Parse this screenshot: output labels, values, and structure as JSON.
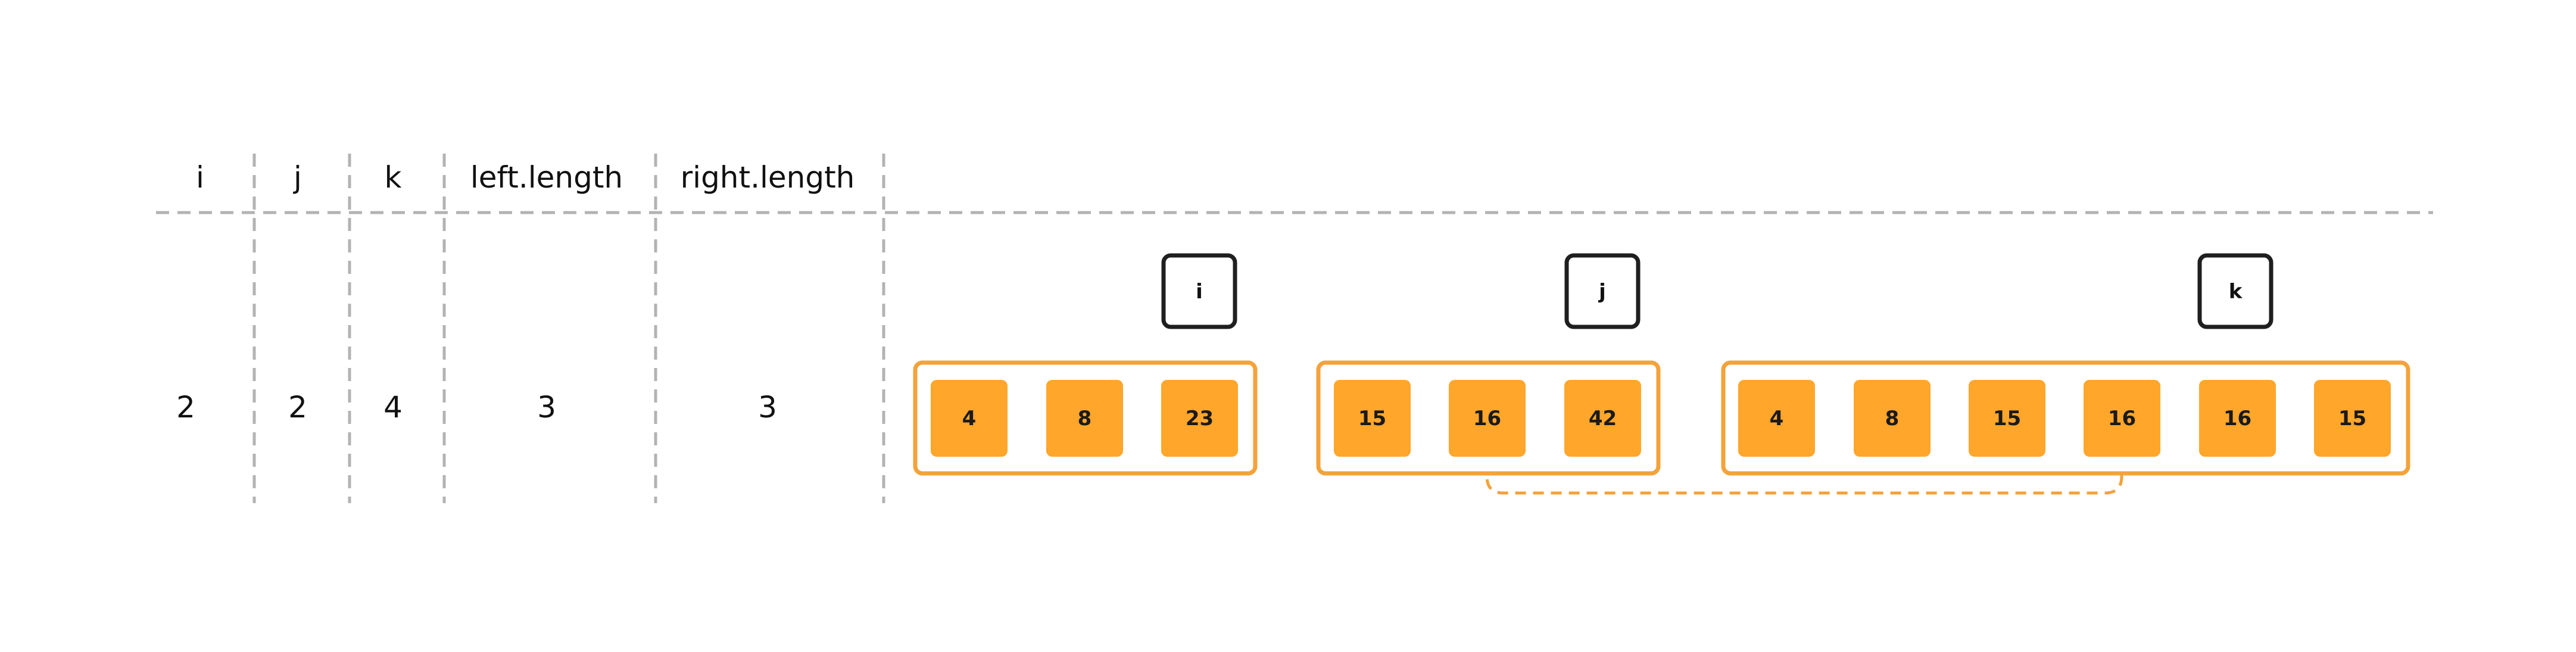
{
  "colors": {
    "accent": "#FFA62B",
    "accent_border": "#F4A23A",
    "grid": "#B3B3B3",
    "text": "#111111",
    "pointer_border": "#1F1F1F"
  },
  "table": {
    "headers": [
      "i",
      "j",
      "k",
      "left.length",
      "right.length"
    ],
    "values": [
      "2",
      "2",
      "4",
      "3",
      "3"
    ]
  },
  "pointers": {
    "i": "i",
    "j": "j",
    "k": "k"
  },
  "arrays": {
    "left": [
      "4",
      "8",
      "23"
    ],
    "right": [
      "15",
      "16",
      "42"
    ],
    "merged": [
      "4",
      "8",
      "15",
      "16",
      "16",
      "15"
    ]
  },
  "connector": {
    "from": "right[1]",
    "to": "merged[3]",
    "style": "dashed"
  }
}
